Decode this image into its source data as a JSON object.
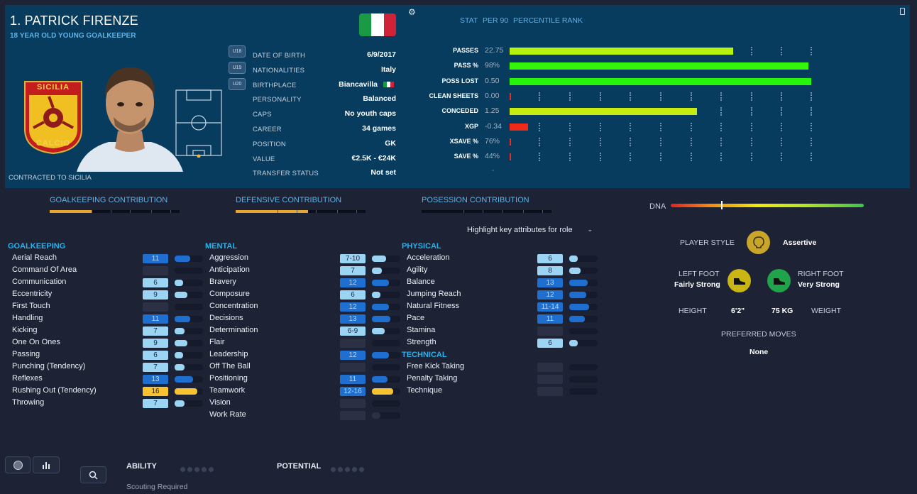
{
  "player": {
    "name": "1. PATRICK FIRENZE",
    "subtitle": "18 YEAR OLD YOUNG GOALKEEPER",
    "contracted": "CONTRACTED TO SICILIA",
    "club_badge_top": "SICILIA",
    "club_badge_bottom": "CALCIO",
    "flag_colors": [
      "#1a9a44",
      "#ffffff",
      "#d0233a"
    ]
  },
  "bio": {
    "chips": [
      "U18",
      "U19",
      "U20"
    ],
    "rows": [
      {
        "label": "DATE OF BIRTH",
        "value": "6/9/2017"
      },
      {
        "label": "NATIONALITIES",
        "value": "Italy"
      },
      {
        "label": "BIRTHPLACE",
        "value": "Biancavilla"
      },
      {
        "label": "PERSONALITY",
        "value": "Balanced"
      },
      {
        "label": "CAPS",
        "value": "No youth caps"
      },
      {
        "label": "CAREER",
        "value": "34  games"
      },
      {
        "label": "POSITION",
        "value": "GK"
      },
      {
        "label": "VALUE",
        "value": "€2.5K - €24K"
      },
      {
        "label": "TRANSFER STATUS",
        "value": "Not set"
      }
    ]
  },
  "stats": {
    "headers": [
      "STAT",
      "PER 90",
      "PERCENTILE RANK"
    ],
    "rows": [
      {
        "label": "PASSES",
        "value": "22.75",
        "pct": 0.74,
        "color": "#b6f20e"
      },
      {
        "label": "PASS %",
        "value": "98%",
        "pct": 0.99,
        "color": "#36f50c"
      },
      {
        "label": "POSS LOST",
        "value": "0.50",
        "pct": 1.0,
        "color": "#24f50a"
      },
      {
        "label": "CLEAN SHEETS",
        "value": "0.00",
        "pct": 0.0,
        "color": "#f02a1a"
      },
      {
        "label": "CONCEDED",
        "value": "1.25",
        "pct": 0.62,
        "color": "#c8ec10"
      },
      {
        "label": "XGP",
        "value": "-0.34",
        "pct": 0.06,
        "color": "#f02a1a"
      },
      {
        "label": "XSAVE %",
        "value": "76%",
        "pct": 0.0,
        "color": "#f02a1a"
      },
      {
        "label": "SAVE %",
        "value": "44%",
        "pct": 0.0,
        "color": "#f02a1a"
      }
    ],
    "trailing": "-"
  },
  "contributions": [
    {
      "label": "GOALKEEPING CONTRIBUTION",
      "fill": 0.32
    },
    {
      "label": "DEFENSIVE CONTRIBUTION",
      "fill": 0.56
    },
    {
      "label": "POSESSION CONTRIBUTION",
      "fill": 0.0
    }
  ],
  "highlight_dropdown": "Highlight key attributes for role",
  "attributes": {
    "goalkeeping": {
      "title": "GOALKEEPING",
      "items": [
        {
          "name": "Aerial Reach",
          "value": "11",
          "style": "cm",
          "fill": 0.55
        },
        {
          "name": "Command Of Area",
          "value": "",
          "style": "cd",
          "fill": 0.0
        },
        {
          "name": "Communication",
          "value": "6",
          "style": "cl",
          "fill": 0.3
        },
        {
          "name": "Eccentricity",
          "value": "9",
          "style": "cl",
          "fill": 0.45
        },
        {
          "name": "First Touch",
          "value": "",
          "style": "cd",
          "fill": 0.0
        },
        {
          "name": "Handling",
          "value": "11",
          "style": "cm",
          "fill": 0.55
        },
        {
          "name": "Kicking",
          "value": "7",
          "style": "cl",
          "fill": 0.35
        },
        {
          "name": "One On Ones",
          "value": "9",
          "style": "cl",
          "fill": 0.45
        },
        {
          "name": "Passing",
          "value": "6",
          "style": "cl",
          "fill": 0.3
        },
        {
          "name": "Punching (Tendency)",
          "value": "7",
          "style": "cl",
          "fill": 0.35
        },
        {
          "name": "Reflexes",
          "value": "13",
          "style": "cm",
          "fill": 0.65
        },
        {
          "name": "Rushing Out (Tendency)",
          "value": "16",
          "style": "cy",
          "fill": 0.8
        },
        {
          "name": "Throwing",
          "value": "7",
          "style": "cl",
          "fill": 0.35
        }
      ]
    },
    "mental": {
      "title": "MENTAL",
      "items": [
        {
          "name": "Aggression",
          "value": "7-10",
          "style": "cl",
          "fill": 0.5
        },
        {
          "name": "Anticipation",
          "value": "7",
          "style": "cl",
          "fill": 0.35
        },
        {
          "name": "Bravery",
          "value": "12",
          "style": "cm",
          "fill": 0.6
        },
        {
          "name": "Composure",
          "value": "6",
          "style": "cl",
          "fill": 0.3
        },
        {
          "name": "Concentration",
          "value": "12",
          "style": "cm",
          "fill": 0.6
        },
        {
          "name": "Decisions",
          "value": "13",
          "style": "cm",
          "fill": 0.65
        },
        {
          "name": "Determination",
          "value": "6-9",
          "style": "cl",
          "fill": 0.45
        },
        {
          "name": "Flair",
          "value": "",
          "style": "cd",
          "fill": 0.0
        },
        {
          "name": "Leadership",
          "value": "12",
          "style": "cm",
          "fill": 0.6
        },
        {
          "name": "Off The Ball",
          "value": "",
          "style": "cd",
          "fill": 0.0
        },
        {
          "name": "Positioning",
          "value": "11",
          "style": "cm",
          "fill": 0.55
        },
        {
          "name": "Teamwork",
          "value": "12-16",
          "style": "cm",
          "fill": 0.75,
          "fill_color": "#f7c331"
        },
        {
          "name": "Vision",
          "value": "",
          "style": "cd",
          "fill": 0.0
        },
        {
          "name": "Work Rate",
          "value": "",
          "style": "cd",
          "fill": 0.3
        }
      ]
    },
    "physical": {
      "title": "PHYSICAL",
      "items": [
        {
          "name": "Acceleration",
          "value": "6",
          "style": "cl",
          "fill": 0.3
        },
        {
          "name": "Agility",
          "value": "8",
          "style": "cl",
          "fill": 0.4
        },
        {
          "name": "Balance",
          "value": "13",
          "style": "cm",
          "fill": 0.65
        },
        {
          "name": "Jumping Reach",
          "value": "12",
          "style": "cm",
          "fill": 0.6
        },
        {
          "name": "Natural Fitness",
          "value": "11-14",
          "style": "cm",
          "fill": 0.7
        },
        {
          "name": "Pace",
          "value": "11",
          "style": "cm",
          "fill": 0.55
        },
        {
          "name": "Stamina",
          "value": "",
          "style": "cd",
          "fill": 0.0
        },
        {
          "name": "Strength",
          "value": "6",
          "style": "cl",
          "fill": 0.3
        }
      ]
    },
    "technical": {
      "title": "TECHNICAL",
      "items": [
        {
          "name": "Free Kick Taking",
          "value": "",
          "style": "cd",
          "fill": 0.0
        },
        {
          "name": "Penalty Taking",
          "value": "",
          "style": "cd",
          "fill": 0.0
        },
        {
          "name": "Technique",
          "value": "",
          "style": "cd",
          "fill": 0.0
        }
      ]
    }
  },
  "dna": {
    "label": "DNA",
    "marker": 0.26
  },
  "profile": {
    "player_style_label": "PLAYER STYLE",
    "player_style": "Assertive",
    "left_foot_label": "LEFT FOOT",
    "left_foot": "Fairly Strong",
    "right_foot_label": "RIGHT FOOT",
    "right_foot": "Very Strong",
    "height_label": "HEIGHT",
    "height": "6'2\"",
    "weight": "75 KG",
    "weight_label": "WEIGHT",
    "preferred_moves_label": "PREFERRED MOVES",
    "preferred_moves": "None"
  },
  "bottom": {
    "ability_label": "ABILITY",
    "potential_label": "POTENTIAL",
    "scouting": "Scouting Required"
  }
}
